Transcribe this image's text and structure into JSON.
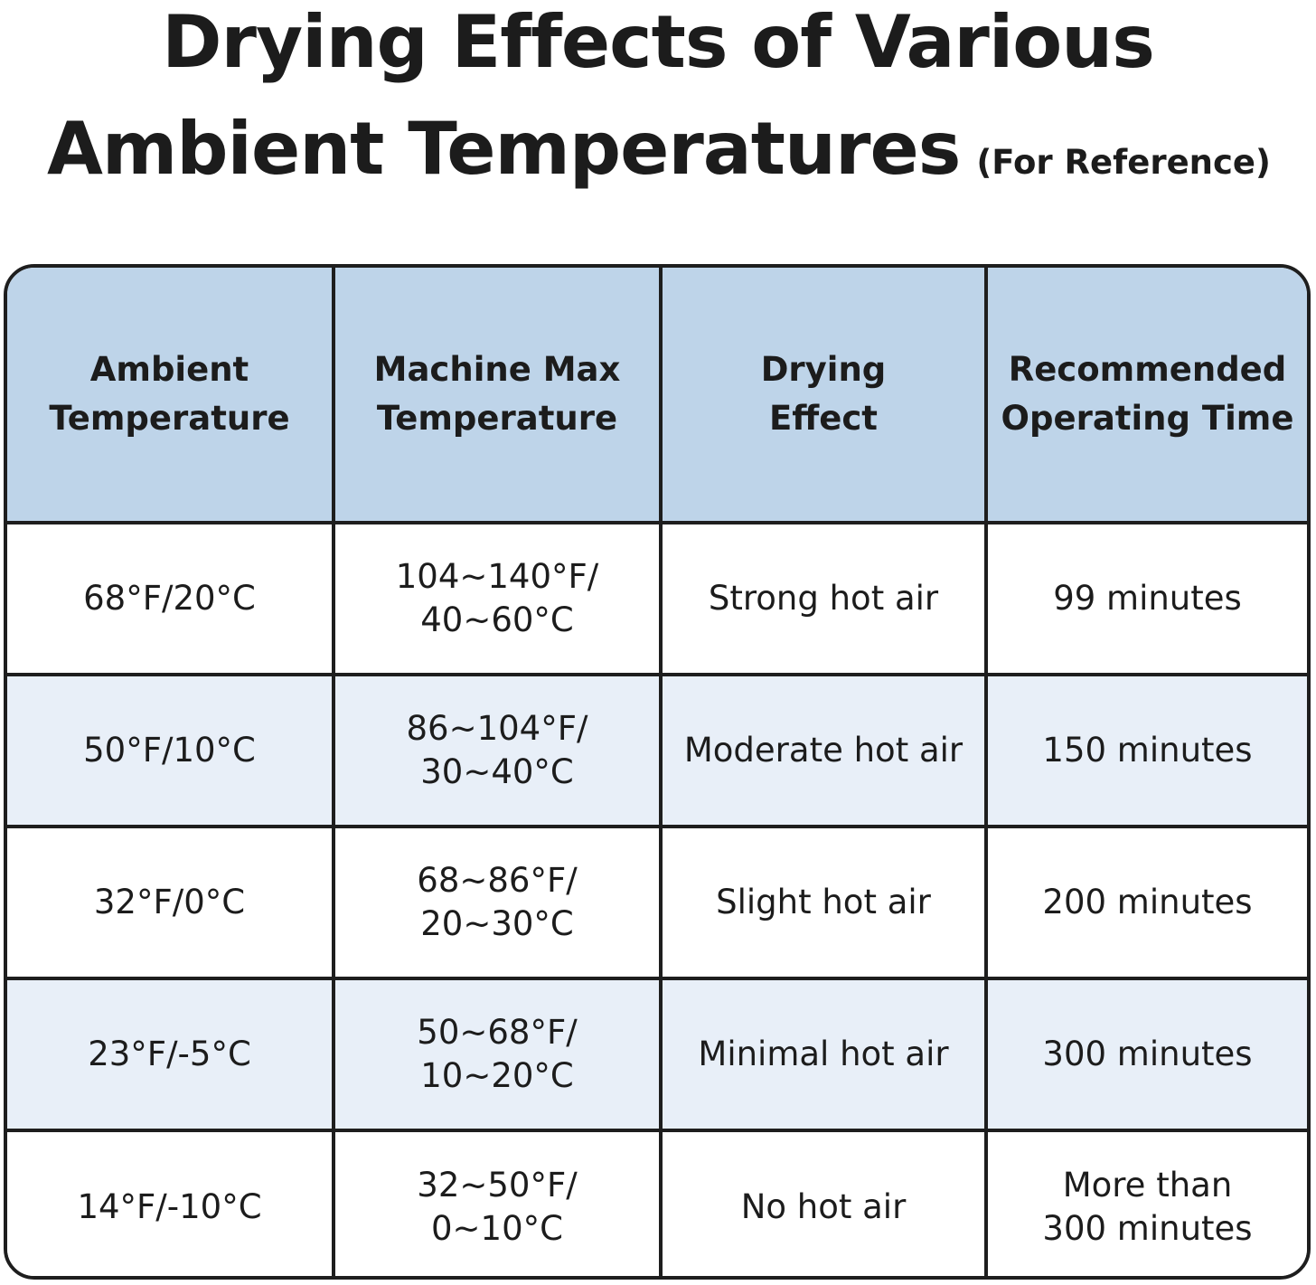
{
  "title": {
    "line1": "Drying Effects of Various",
    "line2": "Ambient Temperatures",
    "note": "(For Reference)"
  },
  "colors": {
    "header_bg": "#bed4e9",
    "alt_row_bg": "#e8eff8",
    "border": "#1e1e1e"
  },
  "chart_data": {
    "type": "table",
    "columns": [
      "Ambient\nTemperature",
      "Machine Max\nTemperature",
      "Drying\nEffect",
      "Recommended\nOperating Time"
    ],
    "rows": [
      [
        "68°F/20°C",
        "104~140°F/\n40~60°C",
        "Strong hot air",
        "99 minutes"
      ],
      [
        "50°F/10°C",
        "86~104°F/\n30~40°C",
        "Moderate hot air",
        "150 minutes"
      ],
      [
        "32°F/0°C",
        "68~86°F/\n20~30°C",
        "Slight hot air",
        "200 minutes"
      ],
      [
        "23°F/-5°C",
        "50~68°F/\n10~20°C",
        "Minimal hot air",
        "300 minutes"
      ],
      [
        "14°F/-10°C",
        "32~50°F/\n0~10°C",
        "No hot air",
        "More than\n300 minutes"
      ]
    ]
  }
}
